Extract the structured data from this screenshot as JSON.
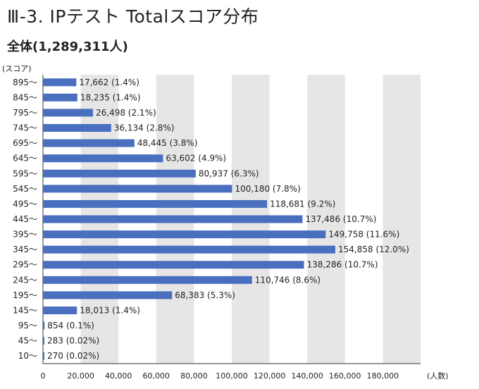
{
  "title": "Ⅲ-3. IPテスト Totalスコア分布",
  "subtitle": "全体(1,289,311人)",
  "chart_data": {
    "type": "bar",
    "orientation": "horizontal",
    "title": "Ⅲ-3. IPテスト Totalスコア分布",
    "subtitle": "全体(1,289,311人)",
    "ylabel": "(スコア)",
    "xlabel": "(人数)",
    "xlim": [
      0,
      200000
    ],
    "x_ticks": [
      "0",
      "20,000",
      "40,000",
      "60,000",
      "80,000",
      "100,000",
      "120,000",
      "140,000",
      "160,000",
      "180,000"
    ],
    "grid": "alternating vertical bands",
    "bar_color": "#4a6fbf",
    "band_color": "#e6e6e6",
    "categories": [
      "895〜",
      "845〜",
      "795〜",
      "745〜",
      "695〜",
      "645〜",
      "595〜",
      "545〜",
      "495〜",
      "445〜",
      "395〜",
      "345〜",
      "295〜",
      "245〜",
      "195〜",
      "145〜",
      "95〜",
      "45〜",
      "10〜"
    ],
    "values": [
      17662,
      18235,
      26498,
      36134,
      48445,
      63602,
      80937,
      100180,
      118681,
      137486,
      149758,
      154858,
      138286,
      110746,
      68383,
      18013,
      854,
      283,
      270
    ],
    "labels": [
      "17,662 (1.4%)",
      "18,235 (1.4%)",
      "26,498 (2.1%)",
      "36,134 (2.8%)",
      "48,445 (3.8%)",
      "63,602 (4.9%)",
      "80,937 (6.3%)",
      "100,180 (7.8%)",
      "118,681 (9.2%)",
      "137,486 (10.7%)",
      "149,758 (11.6%)",
      "154,858 (12.0%)",
      "138,286 (10.7%)",
      "110,746 (8.6%)",
      "68,383 (5.3%)",
      "18,013 (1.4%)",
      "854 (0.1%)",
      "283 (0.02%)",
      "270 (0.02%)"
    ]
  }
}
